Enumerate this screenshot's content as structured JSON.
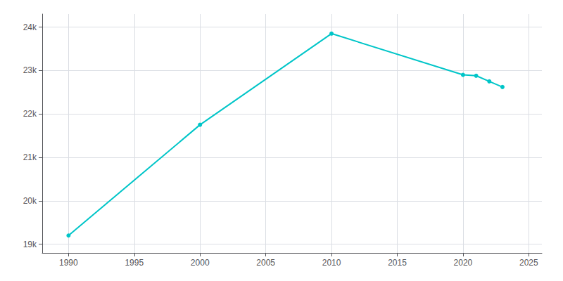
{
  "chart_data": {
    "type": "line",
    "x": [
      1990,
      2000,
      2010,
      2020,
      2021,
      2022,
      2023
    ],
    "values": [
      19200,
      21750,
      23850,
      22900,
      22880,
      22750,
      22620
    ],
    "color": "#00C5C8",
    "marker": "circle",
    "xlim": [
      1988,
      2026
    ],
    "xticks": [
      1990,
      1995,
      2000,
      2005,
      2010,
      2015,
      2020,
      2025
    ],
    "ylim": [
      18800,
      24300
    ],
    "yticks": [
      {
        "value": 19000,
        "label": "19k"
      },
      {
        "value": 20000,
        "label": "20k"
      },
      {
        "value": 21000,
        "label": "21k"
      },
      {
        "value": 22000,
        "label": "22k"
      },
      {
        "value": 23000,
        "label": "23k"
      },
      {
        "value": 24000,
        "label": "24k"
      }
    ],
    "grid": true
  }
}
